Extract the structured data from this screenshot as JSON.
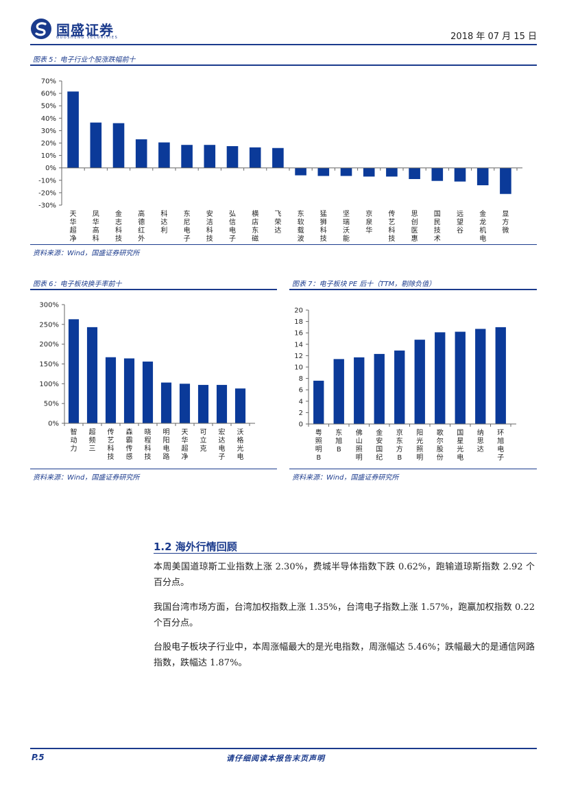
{
  "header": {
    "brand": "国盛证券",
    "brand_sub": "GUOSHENG SECURITIES",
    "date": "2018 年 07 月 15 日"
  },
  "figures": {
    "fig5": {
      "title": "图表 5：电子行业个股涨跌幅前十",
      "source": "资料来源：Wind，国盛证券研究所"
    },
    "fig6": {
      "title": "图表 6：电子板块换手率前十",
      "source": "资料来源：Wind，国盛证券研究所"
    },
    "fig7": {
      "title": "图表 7：电子板块 PE 后十（TTM，剔除负值）",
      "source": "资料来源：Wind，国盛证券研究所"
    }
  },
  "chart_data": [
    {
      "id": "fig5",
      "type": "bar",
      "categories": [
        "天华超净",
        "凤华高科",
        "金志科技",
        "高德红外",
        "科达利",
        "东尼电子",
        "安洁科技",
        "弘信电子",
        "横店东磁",
        "飞荣达",
        "东软载波",
        "猛狮科技",
        "坚瑞沃能",
        "京泉华",
        "传艺科技",
        "思创医惠",
        "国民技术",
        "远望谷",
        "金龙机电",
        "显方微"
      ],
      "values": [
        61.5,
        36.5,
        36,
        23,
        20.5,
        18.5,
        18.5,
        17.5,
        16.5,
        16,
        -6,
        -6.5,
        -6.5,
        -7,
        -7,
        -9,
        -10.5,
        -11,
        -14,
        -21
      ],
      "ylim": [
        -30,
        70
      ],
      "yticks": [
        "70%",
        "60%",
        "50%",
        "40%",
        "30%",
        "20%",
        "10%",
        "0%",
        "-10%",
        "-20%",
        "-30%"
      ],
      "color": "#0b3a99"
    },
    {
      "id": "fig6",
      "type": "bar",
      "categories": [
        "智动力",
        "超频三",
        "传艺科技",
        "森霸传感",
        "晓程科技",
        "明阳电路",
        "天华超净",
        "可立克",
        "宏达电子",
        "沃格光电"
      ],
      "values": [
        263,
        243,
        167,
        164,
        156,
        103,
        100,
        97,
        97,
        88
      ],
      "ylim": [
        0,
        300
      ],
      "yticks": [
        "300%",
        "250%",
        "200%",
        "150%",
        "100%",
        "50%",
        "0%"
      ],
      "color": "#0b3a99"
    },
    {
      "id": "fig7",
      "type": "bar",
      "categories": [
        "粤照明B",
        "东旭B",
        "佛山照明",
        "金安国纪",
        "京东方B",
        "阳光照明",
        "歌尔股份",
        "国星光电",
        "纳思达",
        "环旭电子"
      ],
      "values": [
        7.6,
        11.4,
        11.7,
        12.3,
        12.9,
        14.8,
        16.1,
        16.2,
        16.7,
        17
      ],
      "ylim": [
        0,
        20
      ],
      "yticks": [
        "20",
        "18",
        "16",
        "14",
        "12",
        "10",
        "8",
        "6",
        "4",
        "2",
        "0"
      ],
      "color": "#0b3a99"
    }
  ],
  "section": {
    "title": "1.2 海外行情回顾",
    "paragraphs": [
      "本周美国道琼斯工业指数上涨 2.30%，费城半导体指数下跌 0.62%，跑输道琼斯指数 2.92 个百分点。",
      "我国台湾市场方面，台湾加权指数上涨 1.35%，台湾电子指数上涨 1.57%，跑赢加权指数 0.22 个百分点。",
      "台股电子板块子行业中，本周涨幅最大的是光电指数，周涨幅达 5.46%；跌幅最大的是通信网路指数，跌幅达 1.87%。"
    ]
  },
  "footer": {
    "page": "P.5",
    "note": "请仔细阅读本报告末页声明"
  }
}
